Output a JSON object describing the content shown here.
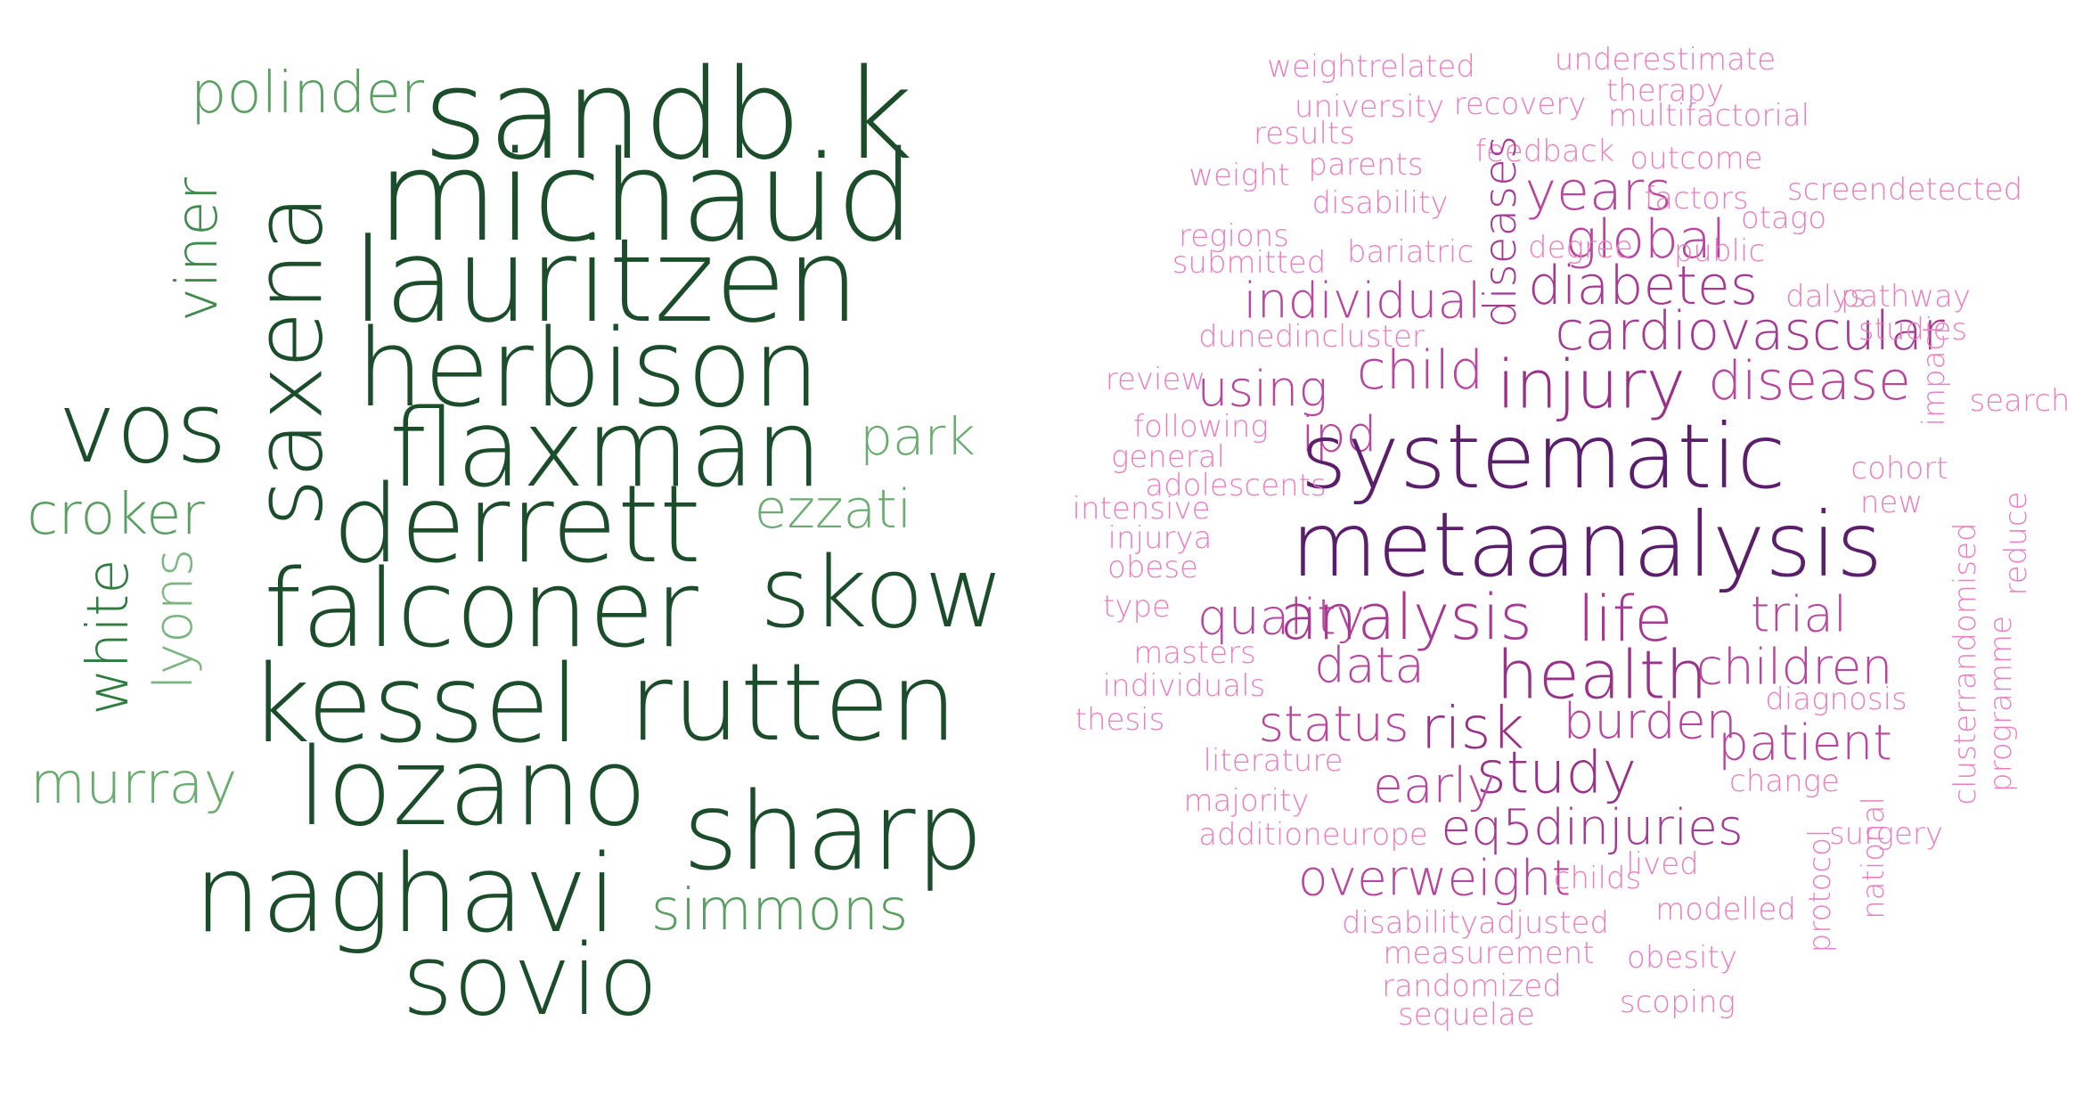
{
  "clouds": [
    {
      "id": "authors",
      "words": [
        {
          "text": "sandb.k",
          "color": "#1b4d2b"
        },
        {
          "text": "michaud",
          "color": "#1b4d2b"
        },
        {
          "text": "lauritzen",
          "color": "#1b4d2b"
        },
        {
          "text": "herbison",
          "color": "#1b4d2b"
        },
        {
          "text": "flaxman",
          "color": "#1b4d2b"
        },
        {
          "text": "derrett",
          "color": "#1b4d2b"
        },
        {
          "text": "falconer",
          "color": "#1b4d2b"
        },
        {
          "text": "kessel",
          "color": "#1b4d2b"
        },
        {
          "text": "rutten",
          "color": "#1b4d2b"
        },
        {
          "text": "lozano",
          "color": "#1b4d2b"
        },
        {
          "text": "sharp",
          "color": "#1b4d2b"
        },
        {
          "text": "naghavi",
          "color": "#1b4d2b"
        },
        {
          "text": "sovio",
          "color": "#1b4d2b"
        },
        {
          "text": "skow",
          "color": "#1b4d2b"
        },
        {
          "text": "vos",
          "color": "#1b4d2b"
        },
        {
          "text": "saxena",
          "color": "#1b4d2b"
        },
        {
          "text": "polinder",
          "color": "#5a9e62"
        },
        {
          "text": "viner",
          "color": "#3f8a4c"
        },
        {
          "text": "park",
          "color": "#6aac70"
        },
        {
          "text": "croker",
          "color": "#5a9e62"
        },
        {
          "text": "ezzati",
          "color": "#6aac70"
        },
        {
          "text": "white",
          "color": "#2e7d3e"
        },
        {
          "text": "lyons",
          "color": "#7bb67f"
        },
        {
          "text": "murray",
          "color": "#6aac70"
        },
        {
          "text": "simmons",
          "color": "#5a9e62"
        }
      ]
    },
    {
      "id": "terms",
      "words": [
        {
          "text": "weightrelated",
          "color": "#e77fc0"
        },
        {
          "text": "underestimate",
          "color": "#e77fc0"
        },
        {
          "text": "therapy",
          "color": "#e77fc0"
        },
        {
          "text": "university",
          "color": "#e77fc0"
        },
        {
          "text": "recovery",
          "color": "#e77fc0"
        },
        {
          "text": "multifactorial",
          "color": "#e77fc0"
        },
        {
          "text": "results",
          "color": "#e77fc0"
        },
        {
          "text": "feedback",
          "color": "#e77fc0"
        },
        {
          "text": "outcome",
          "color": "#e77fc0"
        },
        {
          "text": "weight",
          "color": "#e77fc0"
        },
        {
          "text": "parents",
          "color": "#e77fc0"
        },
        {
          "text": "screendetected",
          "color": "#e77fc0"
        },
        {
          "text": "years",
          "color": "#b8469e"
        },
        {
          "text": "factors",
          "color": "#e77fc0"
        },
        {
          "text": "disability",
          "color": "#e77fc0"
        },
        {
          "text": "otago",
          "color": "#e77fc0"
        },
        {
          "text": "regions",
          "color": "#e77fc0"
        },
        {
          "text": "global",
          "color": "#b8469e"
        },
        {
          "text": "bariatric",
          "color": "#e77fc0"
        },
        {
          "text": "degree",
          "color": "#e77fc0"
        },
        {
          "text": "public",
          "color": "#e77fc0"
        },
        {
          "text": "submitted",
          "color": "#e77fc0"
        },
        {
          "text": "diseases",
          "color": "#a63a93"
        },
        {
          "text": "diabetes",
          "color": "#a63a93"
        },
        {
          "text": "individual",
          "color": "#b8469e"
        },
        {
          "text": "dalys",
          "color": "#e77fc0"
        },
        {
          "text": "pathway",
          "color": "#e77fc0"
        },
        {
          "text": "cardiovascular",
          "color": "#a63a93"
        },
        {
          "text": "dunedincluster",
          "color": "#e77fc0"
        },
        {
          "text": "studies",
          "color": "#e77fc0"
        },
        {
          "text": "child",
          "color": "#b8469e"
        },
        {
          "text": "impact",
          "color": "#e77fc0"
        },
        {
          "text": "review",
          "color": "#e77fc0"
        },
        {
          "text": "using",
          "color": "#b8469e"
        },
        {
          "text": "injury",
          "color": "#9a3189"
        },
        {
          "text": "disease",
          "color": "#b8469e"
        },
        {
          "text": "search",
          "color": "#e77fc0"
        },
        {
          "text": "following",
          "color": "#e77fc0"
        },
        {
          "text": "ipd",
          "color": "#b8469e"
        },
        {
          "text": "systematic",
          "color": "#5b1e6b"
        },
        {
          "text": "general",
          "color": "#e77fc0"
        },
        {
          "text": "cohort",
          "color": "#e77fc0"
        },
        {
          "text": "adolescents",
          "color": "#e77fc0"
        },
        {
          "text": "intensive",
          "color": "#e77fc0"
        },
        {
          "text": "metaanalysis",
          "color": "#5b1e6b"
        },
        {
          "text": "new",
          "color": "#e77fc0"
        },
        {
          "text": "injurya",
          "color": "#e77fc0"
        },
        {
          "text": "obese",
          "color": "#e77fc0"
        },
        {
          "text": "reduce",
          "color": "#e77fc0"
        },
        {
          "text": "type",
          "color": "#e77fc0"
        },
        {
          "text": "quality",
          "color": "#b8469e"
        },
        {
          "text": "analysis",
          "color": "#a63a93"
        },
        {
          "text": "life",
          "color": "#a63a93"
        },
        {
          "text": "trial",
          "color": "#b8469e"
        },
        {
          "text": "clusterrandomised",
          "color": "#e77fc0"
        },
        {
          "text": "masters",
          "color": "#e77fc0"
        },
        {
          "text": "data",
          "color": "#b8469e"
        },
        {
          "text": "health",
          "color": "#9a3189"
        },
        {
          "text": "children",
          "color": "#b8469e"
        },
        {
          "text": "programme",
          "color": "#e77fc0"
        },
        {
          "text": "individuals",
          "color": "#e77fc0"
        },
        {
          "text": "diagnosis",
          "color": "#e77fc0"
        },
        {
          "text": "thesis",
          "color": "#e77fc0"
        },
        {
          "text": "status",
          "color": "#b8469e"
        },
        {
          "text": "risk",
          "color": "#9a3189"
        },
        {
          "text": "burden",
          "color": "#b8469e"
        },
        {
          "text": "patient",
          "color": "#b8469e"
        },
        {
          "text": "literature",
          "color": "#e77fc0"
        },
        {
          "text": "study",
          "color": "#9a3189"
        },
        {
          "text": "early",
          "color": "#b8469e"
        },
        {
          "text": "change",
          "color": "#e77fc0"
        },
        {
          "text": "majority",
          "color": "#e77fc0"
        },
        {
          "text": "additioneurope",
          "color": "#e77fc0"
        },
        {
          "text": "eq5dinjuries",
          "color": "#a63a93"
        },
        {
          "text": "surgery",
          "color": "#e77fc0"
        },
        {
          "text": "national",
          "color": "#e77fc0"
        },
        {
          "text": "overweight",
          "color": "#b8469e"
        },
        {
          "text": "childs",
          "color": "#e77fc0"
        },
        {
          "text": "lived",
          "color": "#e77fc0"
        },
        {
          "text": "protocol",
          "color": "#e77fc0"
        },
        {
          "text": "modelled",
          "color": "#e77fc0"
        },
        {
          "text": "disabilityadjusted",
          "color": "#e77fc0"
        },
        {
          "text": "measurement",
          "color": "#e77fc0"
        },
        {
          "text": "obesity",
          "color": "#e77fc0"
        },
        {
          "text": "randomized",
          "color": "#e77fc0"
        },
        {
          "text": "scoping",
          "color": "#e77fc0"
        },
        {
          "text": "sequelae",
          "color": "#e77fc0"
        }
      ]
    }
  ]
}
